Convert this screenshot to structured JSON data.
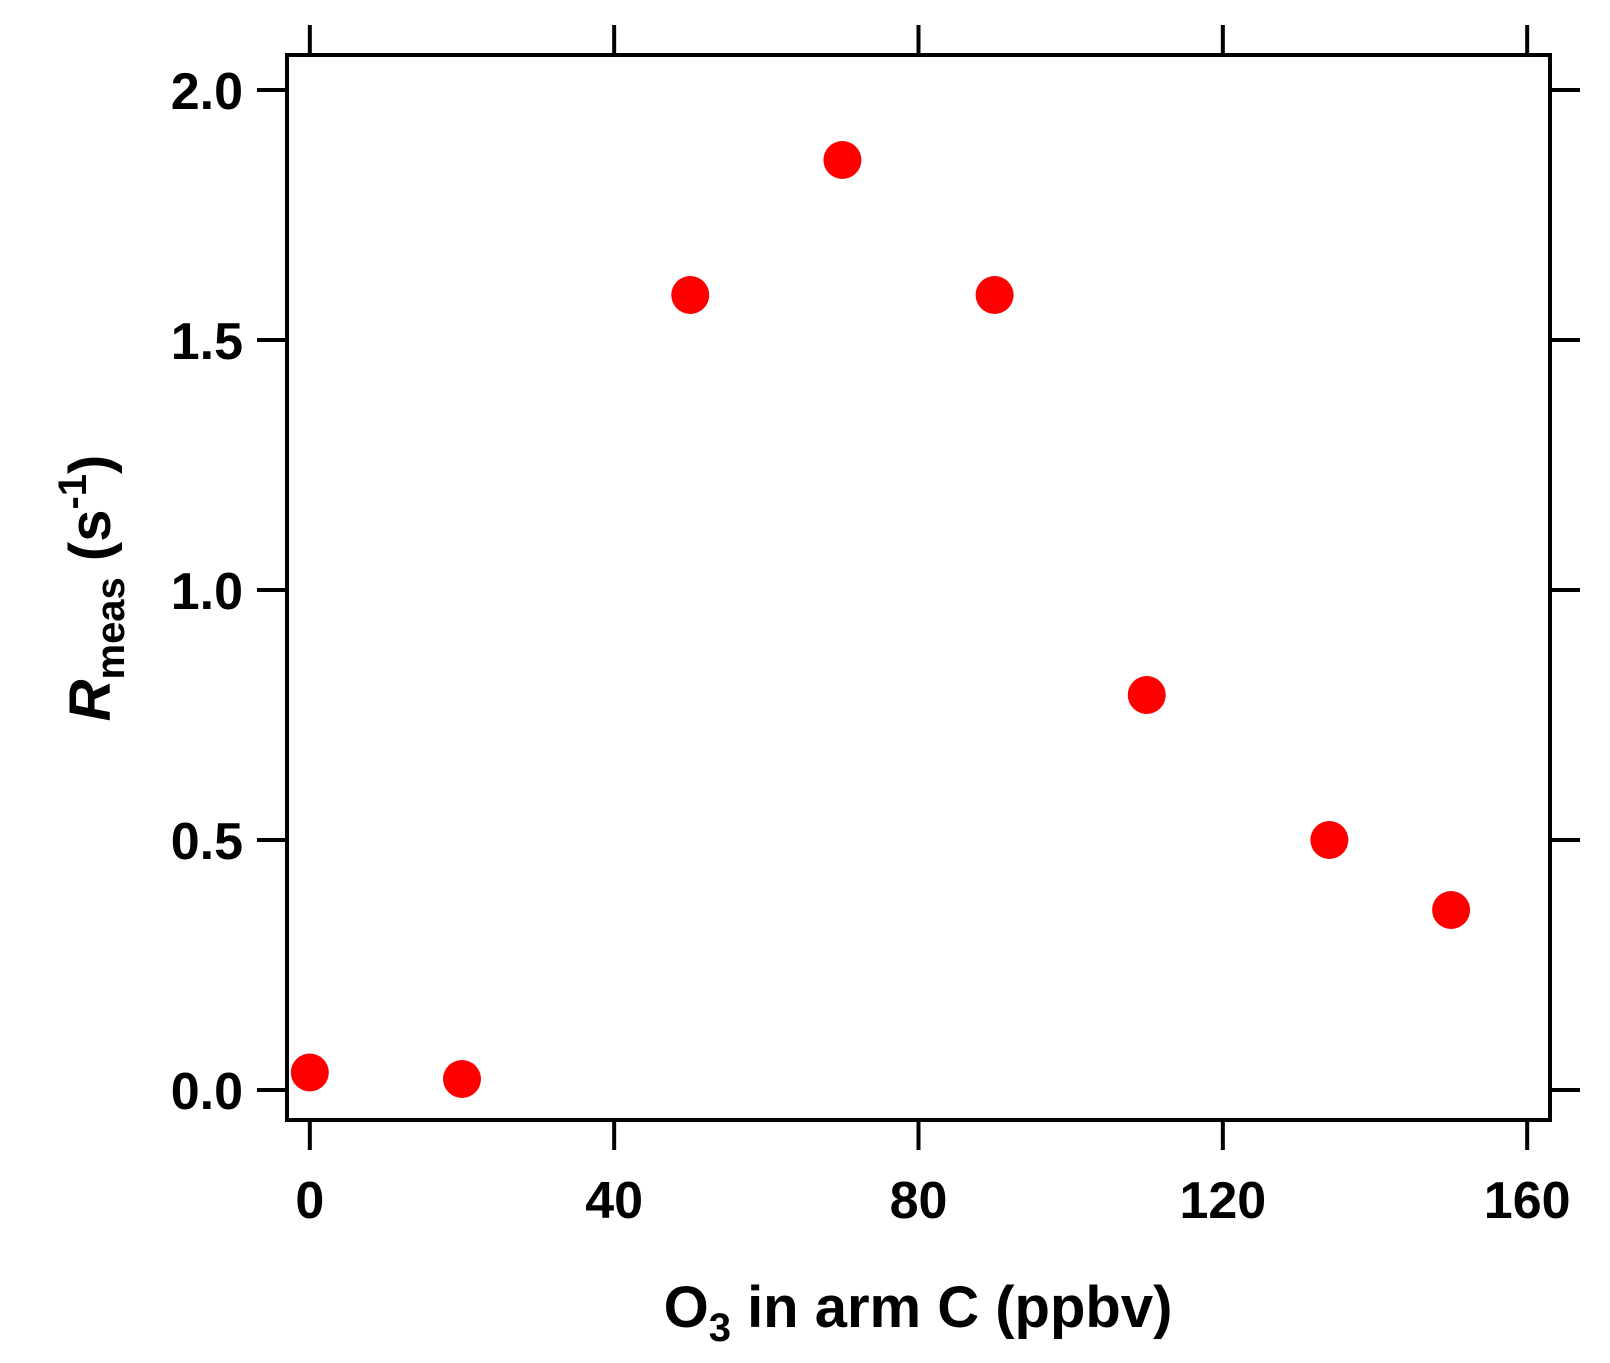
{
  "chart_data": {
    "type": "scatter",
    "title": "",
    "xlabel": {
      "main": "O",
      "sub": "3",
      "rest": " in arm C (ppbv)"
    },
    "ylabel": {
      "main": "R",
      "sub": "meas",
      "rest_open": " (s",
      "sup": "-1",
      "rest_close": ")"
    },
    "xlim": [
      -3,
      163
    ],
    "ylim": [
      -0.06,
      2.07
    ],
    "xticks": [
      0,
      40,
      80,
      120,
      160
    ],
    "xtick_labels": [
      "0",
      "40",
      "80",
      "120",
      "160"
    ],
    "yticks": [
      0.0,
      0.5,
      1.0,
      1.5,
      2.0
    ],
    "ytick_labels": [
      "0.0",
      "0.5",
      "1.0",
      "1.5",
      "2.0"
    ],
    "grid": false,
    "marker_color": "#ff0000",
    "points": [
      {
        "x": 0,
        "y": 0.035
      },
      {
        "x": 20,
        "y": 0.022
      },
      {
        "x": 50,
        "y": 1.59
      },
      {
        "x": 70,
        "y": 1.86
      },
      {
        "x": 90,
        "y": 1.59
      },
      {
        "x": 110,
        "y": 0.79
      },
      {
        "x": 134,
        "y": 0.5
      },
      {
        "x": 150,
        "y": 0.36
      }
    ]
  }
}
